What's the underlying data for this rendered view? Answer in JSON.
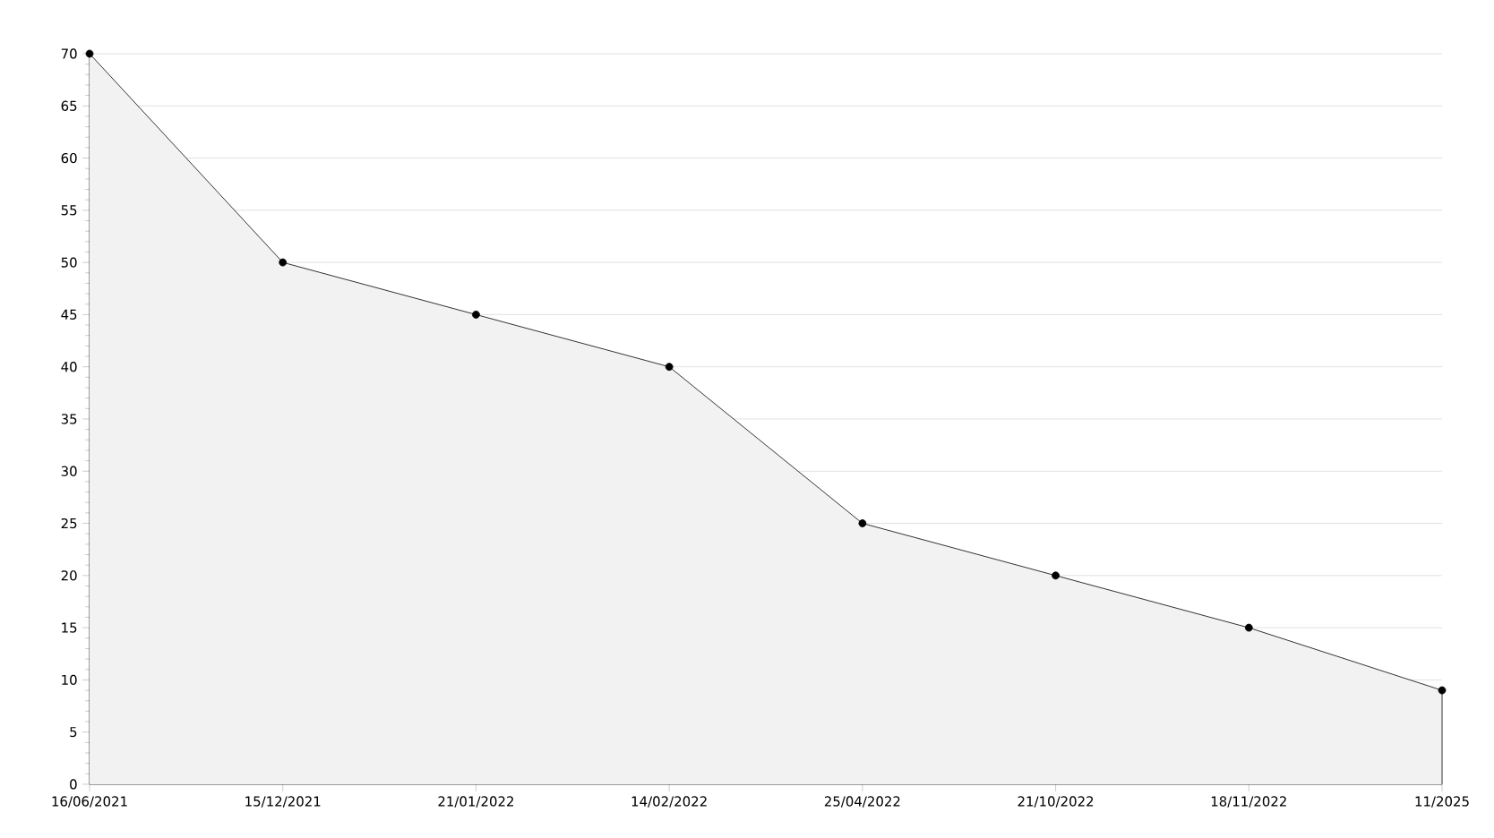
{
  "chart_data": {
    "type": "area",
    "categories": [
      "16/06/2021",
      "15/12/2021",
      "21/01/2022",
      "14/02/2022",
      "25/04/2022",
      "21/10/2022",
      "18/11/2022",
      "11/2025"
    ],
    "series": [
      {
        "color": "#000000",
        "values": [
          70,
          50,
          45,
          40,
          25,
          20,
          15,
          9
        ]
      }
    ],
    "ylim": [
      0,
      70
    ],
    "yticks": [
      0,
      5,
      10,
      15,
      20,
      25,
      30,
      35,
      40,
      45,
      50,
      55,
      60,
      65,
      70
    ],
    "grid": "y",
    "marker": "circle",
    "line_style": "solid"
  }
}
